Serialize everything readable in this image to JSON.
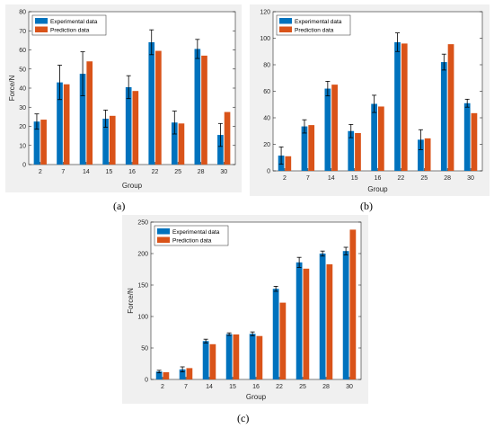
{
  "colors": {
    "experimental": "#0072bd",
    "prediction": "#d95319",
    "error_bar": "#000000",
    "panel_bg": "#f0f0f0"
  },
  "chart_data": [
    {
      "panel_label": "(a)",
      "type": "bar",
      "categories": [
        "2",
        "7",
        "14",
        "15",
        "16",
        "22",
        "25",
        "28",
        "30"
      ],
      "series": [
        {
          "name": "Experimental data",
          "values": [
            22.5,
            43,
            47.5,
            24,
            40.5,
            64,
            22,
            60.5,
            15.5
          ],
          "errors": [
            4,
            9,
            11.5,
            4.5,
            6,
            6.5,
            6,
            5,
            6
          ]
        },
        {
          "name": "Prediction data",
          "values": [
            23.5,
            42,
            54,
            25.5,
            38.5,
            59.5,
            21.5,
            57,
            27.5
          ]
        }
      ],
      "xlabel": "Group",
      "ylabel": "Force/N",
      "ylim": [
        0,
        80
      ],
      "yticks": [
        0,
        10,
        20,
        30,
        40,
        50,
        60,
        70,
        80
      ],
      "legend": "top-left",
      "grid": false
    },
    {
      "panel_label": "(b)",
      "type": "bar",
      "categories": [
        "2",
        "7",
        "14",
        "15",
        "16",
        "22",
        "25",
        "28",
        "30"
      ],
      "series": [
        {
          "name": "Experimental data",
          "values": [
            11.5,
            33.5,
            62,
            30,
            50.5,
            97,
            23.5,
            82,
            51
          ],
          "errors": [
            6.5,
            5,
            5.5,
            5,
            6.5,
            7,
            7.5,
            6,
            3
          ]
        },
        {
          "name": "Prediction data",
          "values": [
            11,
            34.5,
            65,
            28.5,
            48.5,
            96,
            24.5,
            95.5,
            43.5
          ]
        }
      ],
      "xlabel": "Group",
      "ylabel": "",
      "ylim": [
        0,
        120
      ],
      "yticks": [
        0,
        20,
        40,
        60,
        80,
        100,
        120
      ],
      "legend": "top-left",
      "grid": false
    },
    {
      "panel_label": "(c)",
      "type": "bar",
      "categories": [
        "2",
        "7",
        "14",
        "15",
        "16",
        "22",
        "25",
        "28",
        "30"
      ],
      "series": [
        {
          "name": "Experimental data",
          "values": [
            12.5,
            16,
            61,
            72,
            72.5,
            144,
            186,
            200,
            204
          ],
          "errors": [
            2,
            4,
            3,
            2,
            3,
            4,
            8,
            4,
            6
          ]
        },
        {
          "name": "Prediction data",
          "values": [
            11.5,
            18,
            56,
            71.5,
            69,
            122,
            176,
            183,
            238
          ]
        }
      ],
      "xlabel": "Group",
      "ylabel": "Force/N",
      "ylim": [
        0,
        250
      ],
      "yticks": [
        0,
        50,
        100,
        150,
        200,
        250
      ],
      "legend": "top-left",
      "grid": false
    }
  ]
}
